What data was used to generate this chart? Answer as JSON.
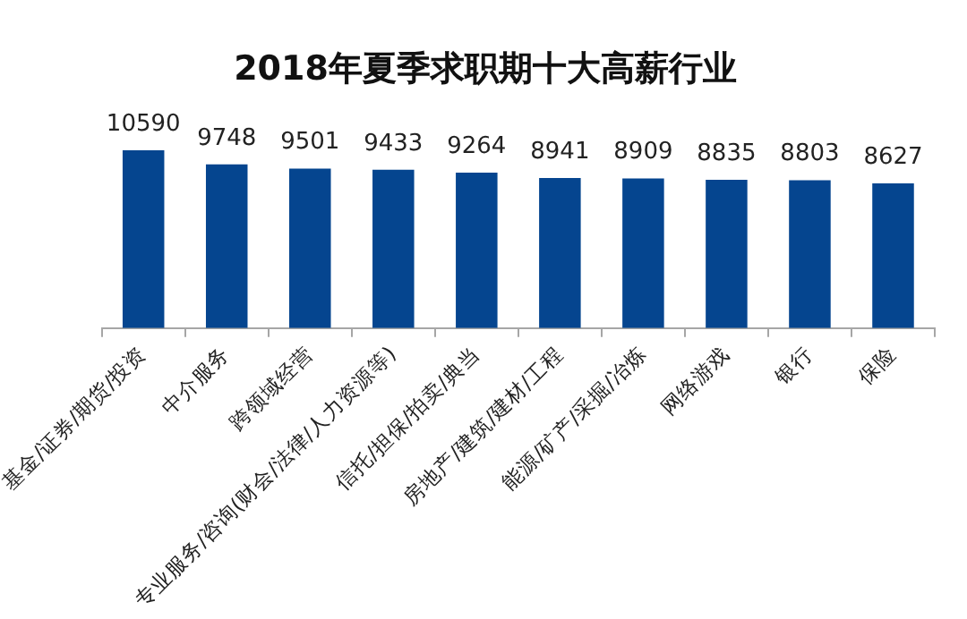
{
  "chart_data": {
    "type": "bar",
    "title": "2018年夏季求职期十大高薪行业",
    "categories": [
      "基金/证券/期货/投资",
      "中介服务",
      "跨领域经营",
      "专业服务/咨询(财会/法律/人力资源等)",
      "信托/担保/拍卖/典当",
      "房地产/建筑/建材/工程",
      "能源/矿产/采掘/冶炼",
      "网络游戏",
      "银行",
      "保险"
    ],
    "values": [
      10590,
      9748,
      9501,
      9433,
      9264,
      8941,
      8909,
      8835,
      8803,
      8627
    ],
    "color": "#05458f",
    "tick_labels": "x",
    "grid": false,
    "legend": false,
    "data_labels": true
  }
}
